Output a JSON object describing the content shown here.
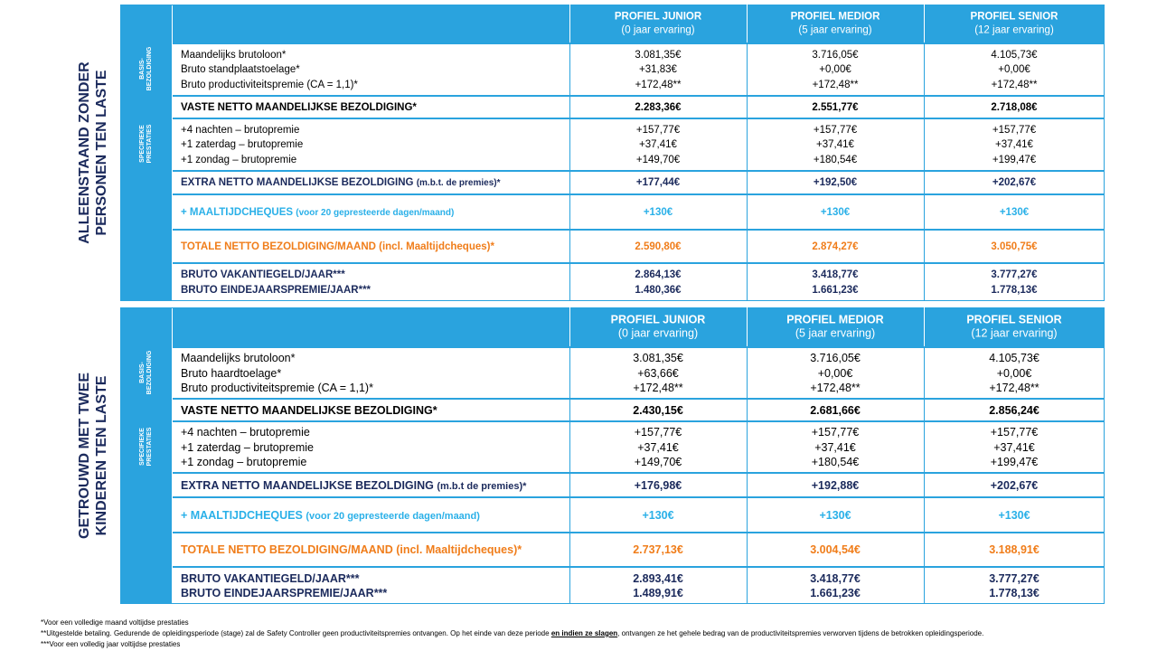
{
  "sections": [
    {
      "side_label": [
        "ALLEENSTAAND ZONDER",
        "PERSONEN TEN LASTE"
      ],
      "profiles": [
        {
          "title": "PROFIEL JUNIOR",
          "experience": "(0 jaar ervaring)"
        },
        {
          "title": "PROFIEL MEDIOR",
          "experience": "(5 jaar ervaring)"
        },
        {
          "title": "PROFIEL SENIOR",
          "experience": "(12 jaar ervaring)"
        }
      ],
      "basis": {
        "label": [
          "BASIS-",
          "BEZOLDIGING"
        ],
        "rows": [
          {
            "label": "Maandelijks brutoloon*",
            "values": [
              "3.081,35€",
              "3.716,05€",
              "4.105,73€"
            ]
          },
          {
            "label": "Bruto standplaatstoelage*",
            "values": [
              "+31,83€",
              "+0,00€",
              "+0,00€"
            ]
          },
          {
            "label": "Bruto productiviteitspremie (CA = 1,1)*",
            "values": [
              "+172,48**",
              "+172,48**",
              "+172,48**"
            ]
          }
        ]
      },
      "vaste": {
        "label": "VASTE NETTO MAANDELIJKSE BEZOLDIGING*",
        "values": [
          "2.283,36€",
          "2.551,77€",
          "2.718,08€"
        ]
      },
      "specifiek": {
        "label": [
          "SPECIFIEKE",
          "PRESTATIES"
        ],
        "rows": [
          {
            "label": "+4 nachten – brutopremie",
            "values": [
              "+157,77€",
              "+157,77€",
              "+157,77€"
            ]
          },
          {
            "label": "+1 zaterdag – brutopremie",
            "values": [
              "+37,41€",
              "+37,41€",
              "+37,41€"
            ]
          },
          {
            "label": "+1 zondag – brutopremie",
            "values": [
              "+149,70€",
              "+180,54€",
              "+199,47€"
            ]
          }
        ]
      },
      "extra": {
        "label": "EXTRA NETTO MAANDELIJKSE BEZOLDIGING",
        "note": "(m.b.t. de premies)*",
        "values": [
          "+177,44€",
          "+192,50€",
          "+202,67€"
        ]
      },
      "maaltijd": {
        "label": "+ MAALTIJDCHEQUES",
        "note": "(voor 20 gepresteerde dagen/maand)",
        "values": [
          "+130€",
          "+130€",
          "+130€"
        ]
      },
      "totale": {
        "label": "TOTALE NETTO BEZOLDIGING/MAAND (incl. Maaltijdcheques)*",
        "values": [
          "2.590,80€",
          "2.874,27€",
          "3.050,75€"
        ]
      },
      "bruto": {
        "rows": [
          {
            "label": "BRUTO VAKANTIEGELD/JAAR***",
            "values": [
              "2.864,13€",
              "3.418,77€",
              "3.777,27€"
            ]
          },
          {
            "label": "BRUTO EINDEJAARSPREMIE/JAAR***",
            "values": [
              "1.480,36€",
              "1.661,23€",
              "1.778,13€"
            ]
          }
        ]
      }
    },
    {
      "side_label": [
        "GETROUWD MET TWEE",
        "KINDEREN TEN LASTE"
      ],
      "profiles": [
        {
          "title": "PROFIEL JUNIOR",
          "experience": "(0 jaar ervaring)"
        },
        {
          "title": "PROFIEL MEDIOR",
          "experience": "(5 jaar ervaring)"
        },
        {
          "title": "PROFIEL SENIOR",
          "experience": "(12 jaar ervaring)"
        }
      ],
      "basis": {
        "label": [
          "BASIS-",
          "BEZOLDIGING"
        ],
        "rows": [
          {
            "label": "Maandelijks brutoloon*",
            "values": [
              "3.081,35€",
              "3.716,05€",
              "4.105,73€"
            ]
          },
          {
            "label": "Bruto haardtoelage*",
            "values": [
              "+63,66€",
              "+0,00€",
              "+0,00€"
            ]
          },
          {
            "label": "Bruto productiviteitspremie (CA = 1,1)*",
            "values": [
              "+172,48**",
              "+172,48**",
              "+172,48**"
            ]
          }
        ]
      },
      "vaste": {
        "label": "VASTE NETTO MAANDELIJKSE BEZOLDIGING*",
        "values": [
          "2.430,15€",
          "2.681,66€",
          "2.856,24€"
        ]
      },
      "specifiek": {
        "label": [
          "SPECIFIEKE",
          "PRESTATIES"
        ],
        "rows": [
          {
            "label": "+4 nachten – brutopremie",
            "values": [
              "+157,77€",
              "+157,77€",
              "+157,77€"
            ]
          },
          {
            "label": "+1 zaterdag – brutopremie",
            "values": [
              "+37,41€",
              "+37,41€",
              "+37,41€"
            ]
          },
          {
            "label": "+1 zondag – brutopremie",
            "values": [
              "+149,70€",
              "+180,54€",
              "+199,47€"
            ]
          }
        ]
      },
      "extra": {
        "label": "EXTRA NETTO MAANDELIJKSE BEZOLDIGING",
        "note": "(m.b.t de premies)*",
        "values": [
          "+176,98€",
          "+192,88€",
          "+202,67€"
        ]
      },
      "maaltijd": {
        "label": "+ MAALTIJDCHEQUES",
        "note": "(voor 20 gepresteerde dagen/maand)",
        "values": [
          "+130€",
          "+130€",
          "+130€"
        ]
      },
      "totale": {
        "label": "TOTALE NETTO BEZOLDIGING/MAAND (incl. Maaltijdcheques)*",
        "values": [
          "2.737,13€",
          "3.004,54€",
          "3.188,91€"
        ]
      },
      "bruto": {
        "rows": [
          {
            "label": "BRUTO VAKANTIEGELD/JAAR***",
            "values": [
              "2.893,41€",
              "3.418,77€",
              "3.777,27€"
            ]
          },
          {
            "label": "BRUTO EINDEJAARSPREMIE/JAAR***",
            "values": [
              "1.489,91€",
              "1.661,23€",
              "1.778,13€"
            ]
          }
        ]
      }
    }
  ],
  "footnotes": {
    "note1": "*Voor een volledige maand voltijdse prestaties",
    "note2": [
      "**Uitgestelde betaling. Gedurende de opleidingsperiode (stage) zal de Safety Controller geen productiviteitspremies ontvangen. Op het einde van deze periode ",
      "en indien ze slagen",
      ", ontvangen ze het gehele bedrag van de productiviteitspremies verworven tijdens de betrokken opleidingsperiode."
    ],
    "note3": "***Voor een volledig jaar voltijdse prestaties"
  }
}
